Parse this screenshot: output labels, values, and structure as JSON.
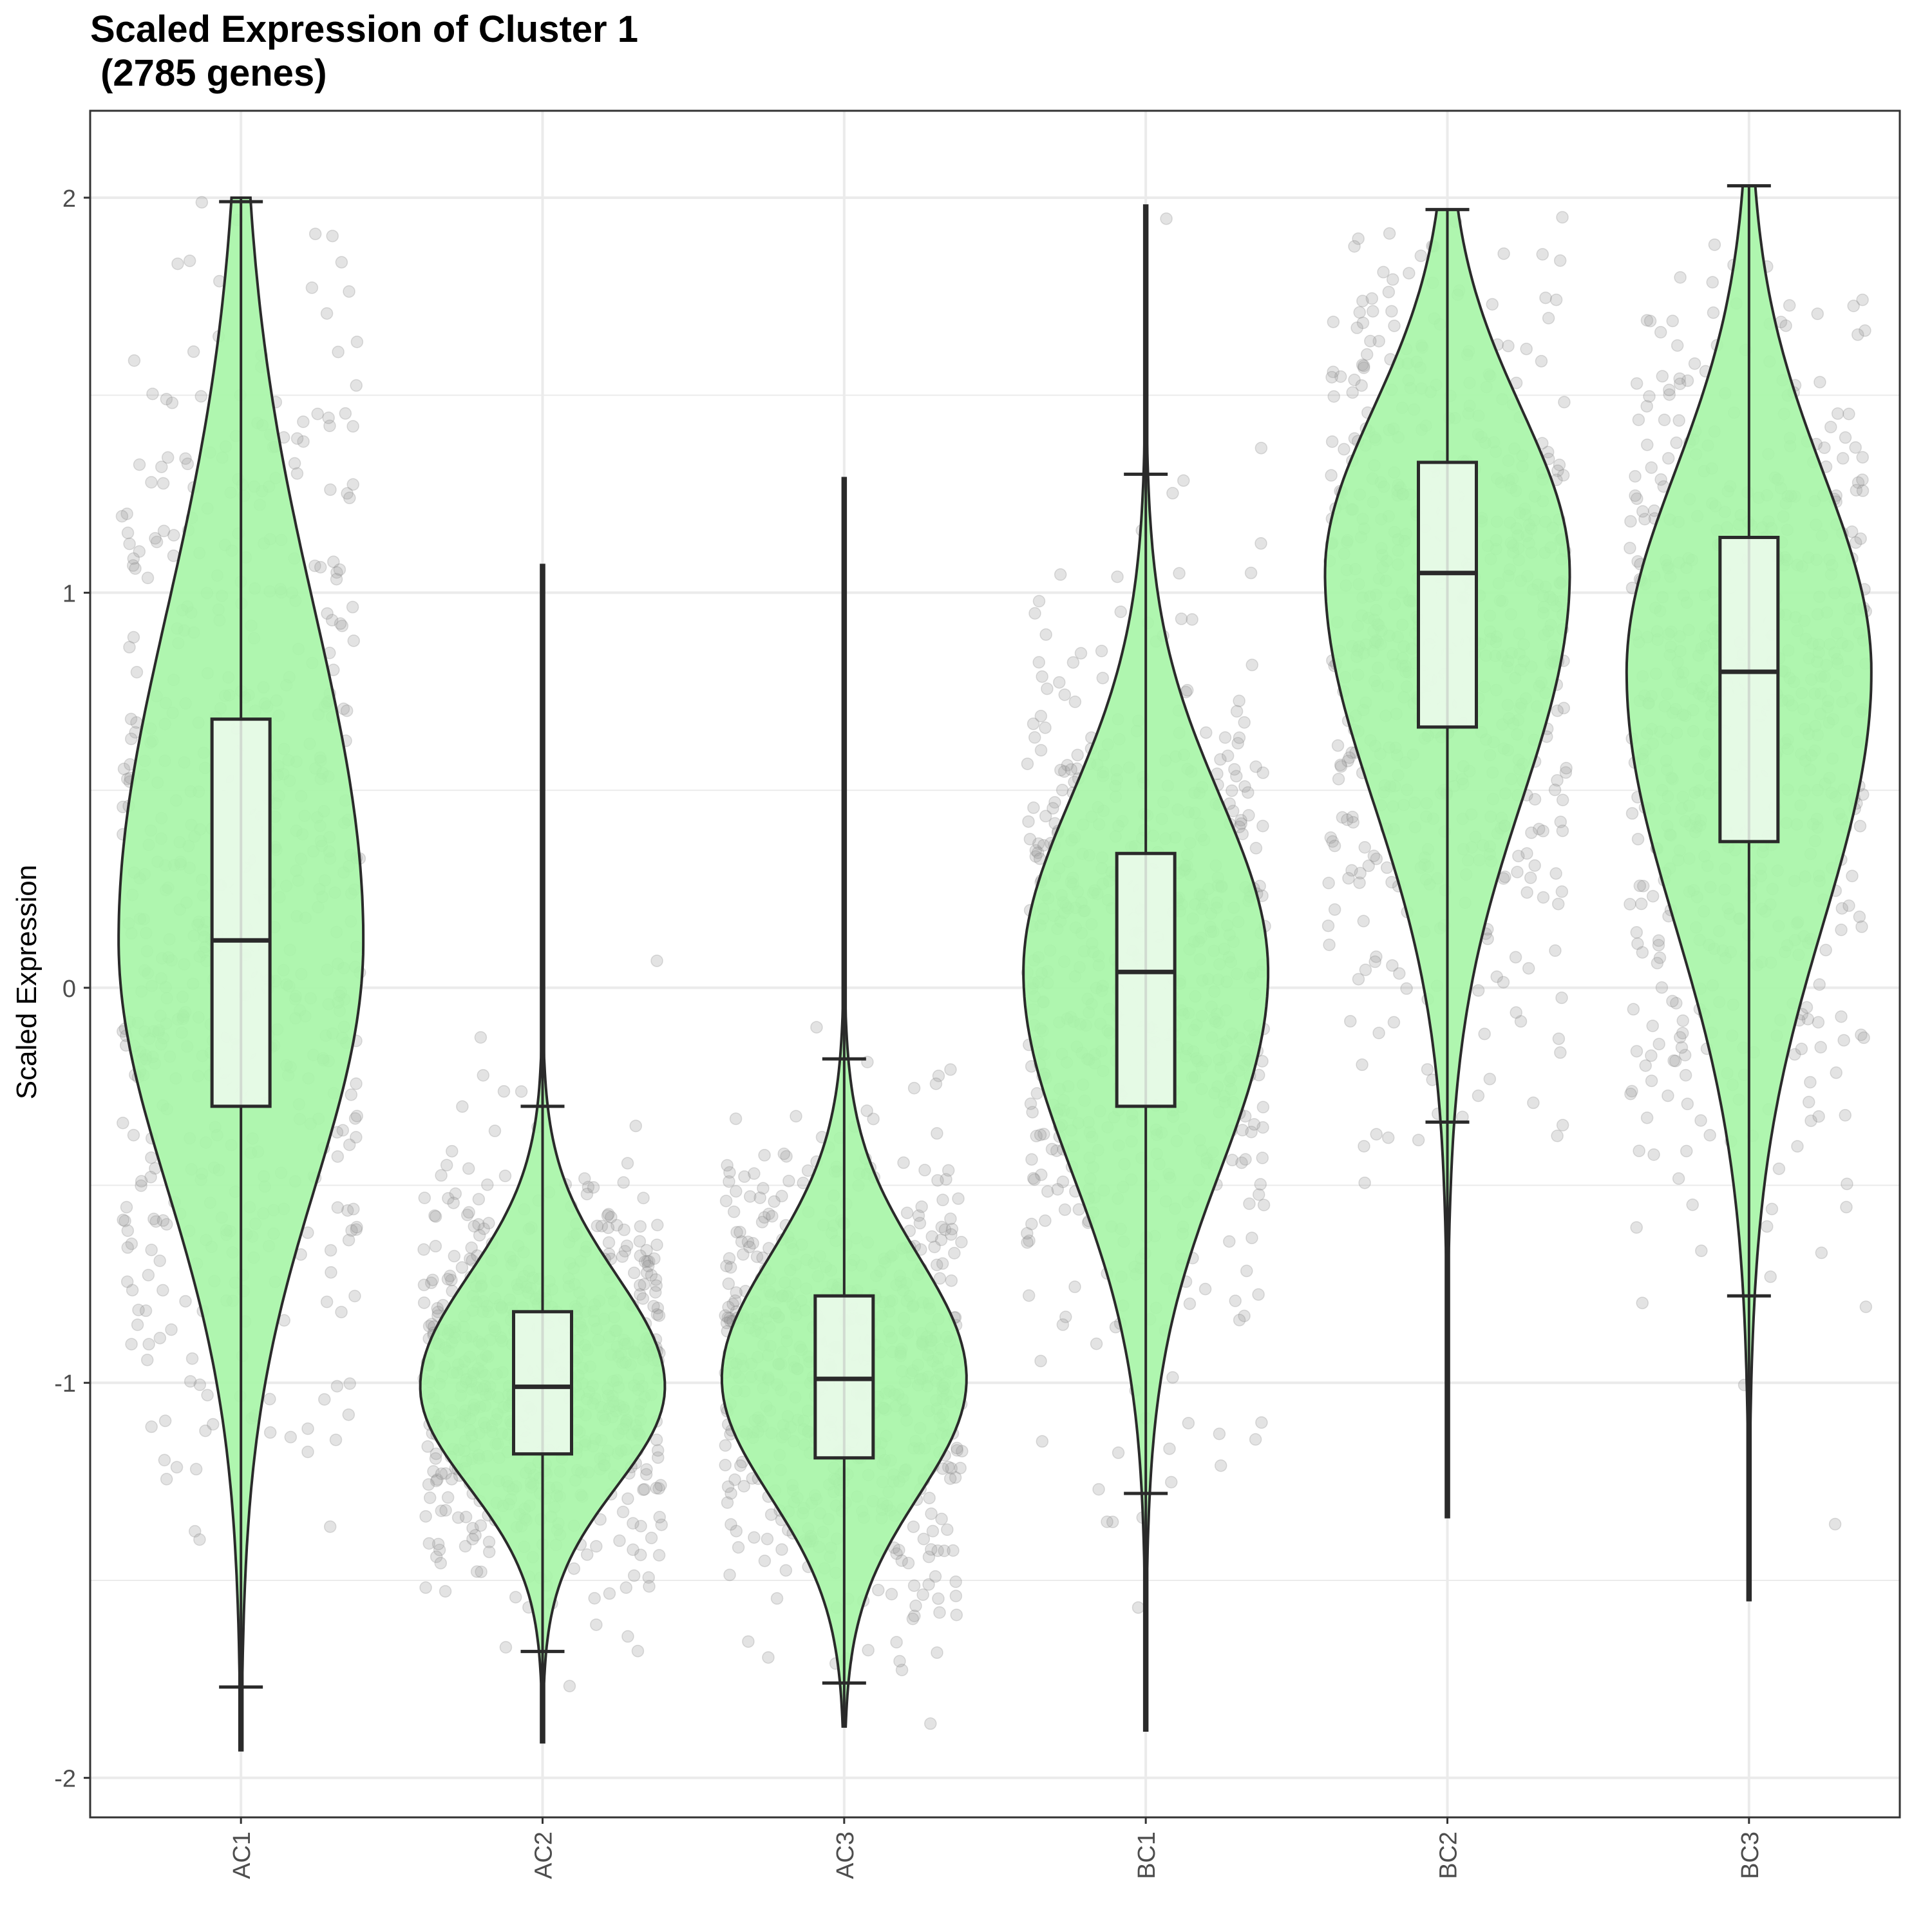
{
  "chart_data": {
    "type": "violin",
    "title_lines": [
      "Scaled Expression of Cluster 1",
      " (2785 genes)"
    ],
    "xlabel": "",
    "ylabel": "Scaled Expression",
    "ylim": [
      -2.1,
      2.22
    ],
    "yticks": [
      -2,
      -1,
      0,
      1,
      2
    ],
    "ytick_labels": [
      "-2",
      "-1",
      "0",
      "1",
      "2"
    ],
    "categories": [
      "AC1",
      "AC2",
      "AC3",
      "BC1",
      "BC2",
      "BC3"
    ],
    "grid": true,
    "fill_color": "#a8f5a8",
    "box_fill_color": "#effaef",
    "line_color": "#2a2a2a",
    "point_color": "#9a9a9a",
    "groups": [
      {
        "label": "AC1",
        "min": -1.93,
        "max": 2.0,
        "whisker_low": -1.77,
        "whisker_high": 1.99,
        "q1": -0.3,
        "median": 0.12,
        "q3": 0.68
      },
      {
        "label": "AC2",
        "min": -1.91,
        "max": 1.07,
        "whisker_low": -1.68,
        "whisker_high": -0.3,
        "q1": -1.18,
        "median": -1.01,
        "q3": -0.82
      },
      {
        "label": "AC3",
        "min": -1.87,
        "max": 1.29,
        "whisker_low": -1.76,
        "whisker_high": -0.18,
        "q1": -1.19,
        "median": -0.99,
        "q3": -0.78
      },
      {
        "label": "BC1",
        "min": -1.88,
        "max": 1.98,
        "whisker_low": -1.28,
        "whisker_high": 1.3,
        "q1": -0.3,
        "median": 0.04,
        "q3": 0.34
      },
      {
        "label": "BC2",
        "min": -1.34,
        "max": 1.97,
        "whisker_low": -0.34,
        "whisker_high": 1.97,
        "q1": 0.66,
        "median": 1.05,
        "q3": 1.33
      },
      {
        "label": "BC3",
        "min": -1.55,
        "max": 2.03,
        "whisker_low": -0.78,
        "whisker_high": 2.03,
        "q1": 0.37,
        "median": 0.8,
        "q3": 1.14
      }
    ]
  }
}
